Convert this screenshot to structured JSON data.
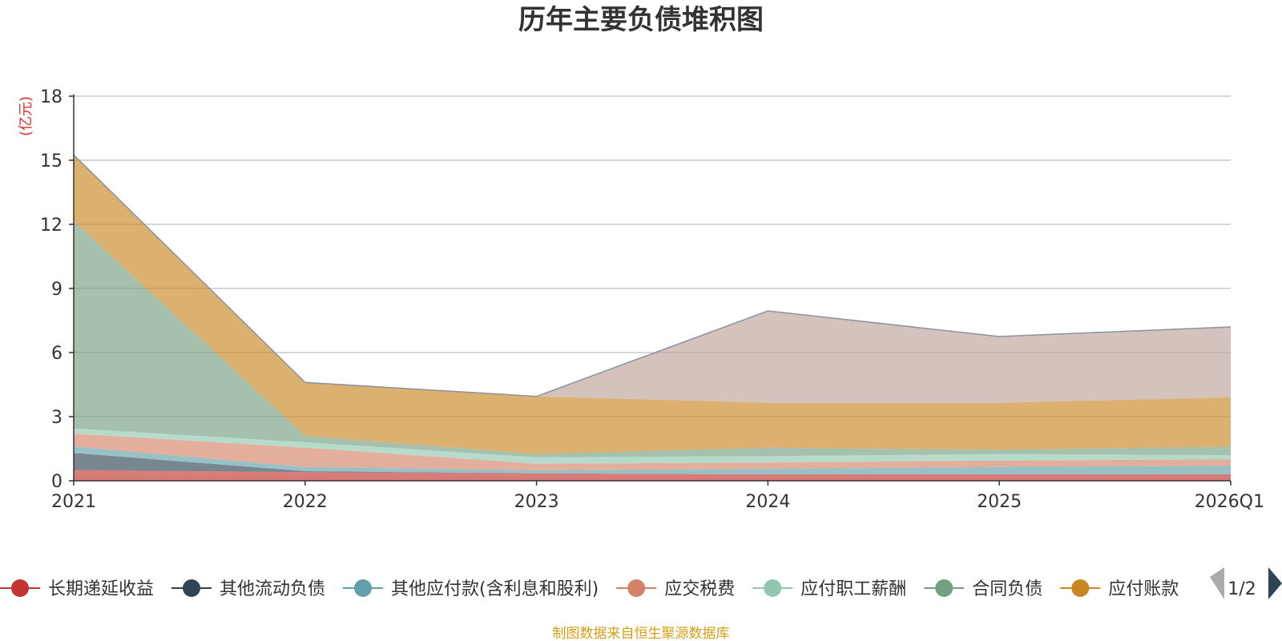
{
  "chart_data": {
    "type": "area",
    "stacked": true,
    "title": "历年主要负债堆积图",
    "unit_label": "(亿元)",
    "categories": [
      "2021",
      "2022",
      "2023",
      "2024",
      "2025",
      "2026Q1"
    ],
    "ylim": [
      0,
      18
    ],
    "yticks": [
      0,
      3,
      6,
      9,
      12,
      15,
      18
    ],
    "grid": true,
    "legend_position": "bottom",
    "series": [
      {
        "name": "长期递延收益",
        "color": "#c23531",
        "values": [
          0.5,
          0.4,
          0.35,
          0.3,
          0.3,
          0.3
        ]
      },
      {
        "name": "其他流动负债",
        "color": "#2f4554",
        "values": [
          0.8,
          0.05,
          0.0,
          0.0,
          0.0,
          0.0
        ]
      },
      {
        "name": "其他应付款(含利息和股利)",
        "color": "#61a0a8",
        "values": [
          0.3,
          0.2,
          0.15,
          0.25,
          0.35,
          0.4
        ]
      },
      {
        "name": "应交税费",
        "color": "#d48265",
        "values": [
          0.6,
          0.9,
          0.3,
          0.3,
          0.3,
          0.3
        ]
      },
      {
        "name": "应付职工薪酬",
        "color": "#91c7ae",
        "values": [
          0.25,
          0.25,
          0.3,
          0.3,
          0.3,
          0.2
        ]
      },
      {
        "name": "合同负债",
        "color": "#749f83",
        "values": [
          9.7,
          0.3,
          0.15,
          0.4,
          0.2,
          0.4
        ]
      },
      {
        "name": "应付账款",
        "color": "#ca8622",
        "values": [
          3.1,
          2.5,
          2.7,
          2.1,
          2.2,
          2.3
        ]
      },
      {
        "name": "",
        "color": "#bda29a",
        "values": [
          0.0,
          0.0,
          0.0,
          4.3,
          3.1,
          3.3
        ]
      }
    ]
  },
  "legend": {
    "items": [
      {
        "label": "长期递延收益",
        "color": "#c23531"
      },
      {
        "label": "其他流动负债",
        "color": "#2f4554"
      },
      {
        "label": "其他应付款(含利息和股利)",
        "color": "#61a0a8"
      },
      {
        "label": "应交税费",
        "color": "#d48265"
      },
      {
        "label": "应付职工薪酬",
        "color": "#91c7ae"
      },
      {
        "label": "合同负债",
        "color": "#749f83"
      },
      {
        "label": "应付账款",
        "color": "#ca8622"
      }
    ],
    "page_indicator": "1/2"
  },
  "footer": {
    "source": "制图数据来自恒生聚源数据库",
    "source_color": "#d4a017"
  },
  "colors": {
    "unit": "#e03030",
    "grid": "#cccccc",
    "axis": "#333333",
    "outline": "#8a93a0"
  }
}
